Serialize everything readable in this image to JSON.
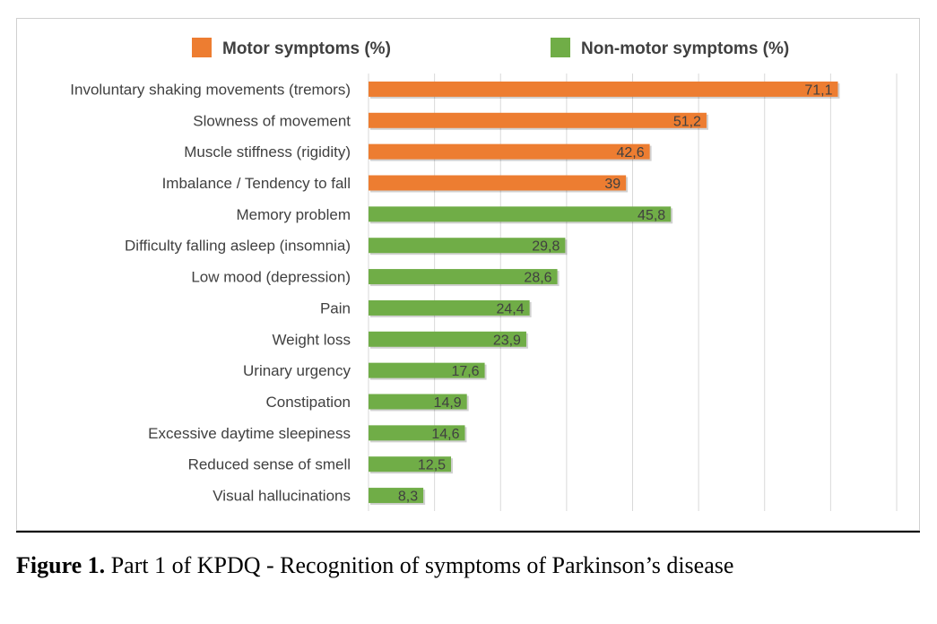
{
  "colors": {
    "motor": "#ED7D31",
    "non_motor": "#70AD47",
    "grid": "#d9d9d9",
    "text": "#404040"
  },
  "caption": {
    "label": "Figure 1.",
    "text": " Part 1 of KPDQ - Recognition of symptoms of Parkinson’s disease"
  },
  "chart_data": {
    "type": "bar",
    "orientation": "horizontal",
    "title": "",
    "xlabel": "",
    "ylabel": "",
    "xlim": [
      0,
      80
    ],
    "grid": true,
    "legend_position": "top",
    "legend": [
      "Motor symptoms (%)",
      "Non-motor symptoms (%)"
    ],
    "categories": [
      "Involuntary shaking movements (tremors)",
      "Slowness of movement",
      "Muscle stiffness (rigidity)",
      "Imbalance / Tendency to fall",
      "Memory problem",
      "Difficulty falling asleep (insomnia)",
      "Low mood (depression)",
      "Pain",
      "Weight loss",
      "Urinary urgency",
      "Constipation",
      "Excessive daytime sleepiness",
      "Reduced sense of smell",
      "Visual hallucinations"
    ],
    "values": [
      71.1,
      51.2,
      42.6,
      39,
      45.8,
      29.8,
      28.6,
      24.4,
      23.9,
      17.6,
      14.9,
      14.6,
      12.5,
      8.3
    ],
    "value_labels": [
      "71,1",
      "51,2",
      "42,6",
      "39",
      "45,8",
      "29,8",
      "28,6",
      "24,4",
      "23,9",
      "17,6",
      "14,9",
      "14,6",
      "12,5",
      "8,3"
    ],
    "series_of_bar": [
      "motor",
      "motor",
      "motor",
      "motor",
      "non_motor",
      "non_motor",
      "non_motor",
      "non_motor",
      "non_motor",
      "non_motor",
      "non_motor",
      "non_motor",
      "non_motor",
      "non_motor"
    ]
  }
}
